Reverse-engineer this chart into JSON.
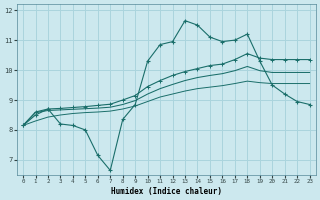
{
  "xlabel": "Humidex (Indice chaleur)",
  "bg_color": "#cce8ee",
  "grid_color": "#aad4dd",
  "line_color": "#1a6e6a",
  "xlim": [
    -0.5,
    23.5
  ],
  "ylim": [
    6.5,
    12.2
  ],
  "yticks": [
    7,
    8,
    9,
    10,
    11,
    12
  ],
  "xticks": [
    0,
    1,
    2,
    3,
    4,
    5,
    6,
    7,
    8,
    9,
    10,
    11,
    12,
    13,
    14,
    15,
    16,
    17,
    18,
    19,
    20,
    21,
    22,
    23
  ],
  "line1_x": [
    0,
    1,
    2,
    3,
    4,
    5,
    6,
    7,
    8,
    9,
    10,
    11,
    12,
    13,
    14,
    15,
    16,
    17,
    18,
    19,
    20,
    21,
    22,
    23
  ],
  "line1_y": [
    8.15,
    8.5,
    8.7,
    8.2,
    8.15,
    8.0,
    7.15,
    6.65,
    8.35,
    8.85,
    10.3,
    10.85,
    10.95,
    11.65,
    11.5,
    11.1,
    10.95,
    11.0,
    11.2,
    10.3,
    9.5,
    9.2,
    8.95,
    8.85
  ],
  "line2_x": [
    0,
    1,
    2,
    3,
    4,
    5,
    6,
    7,
    8,
    9,
    10,
    11,
    12,
    13,
    14,
    15,
    16,
    17,
    18,
    19,
    20,
    21,
    22,
    23
  ],
  "line2_y": [
    8.15,
    8.6,
    8.7,
    8.72,
    8.75,
    8.78,
    8.82,
    8.86,
    9.0,
    9.15,
    9.45,
    9.65,
    9.82,
    9.95,
    10.05,
    10.15,
    10.2,
    10.35,
    10.55,
    10.4,
    10.35,
    10.35,
    10.35,
    10.35
  ],
  "line3_x": [
    0,
    1,
    2,
    3,
    4,
    5,
    6,
    7,
    8,
    9,
    10,
    11,
    12,
    13,
    14,
    15,
    16,
    17,
    18,
    19,
    20,
    21,
    22,
    23
  ],
  "line3_y": [
    8.15,
    8.58,
    8.65,
    8.67,
    8.69,
    8.71,
    8.73,
    8.76,
    8.85,
    8.98,
    9.2,
    9.38,
    9.52,
    9.65,
    9.75,
    9.82,
    9.88,
    9.98,
    10.12,
    9.98,
    9.92,
    9.92,
    9.92,
    9.92
  ],
  "line4_x": [
    0,
    1,
    2,
    3,
    4,
    5,
    6,
    7,
    8,
    9,
    10,
    11,
    12,
    13,
    14,
    15,
    16,
    17,
    18,
    19,
    20,
    21,
    22,
    23
  ],
  "line4_y": [
    8.15,
    8.3,
    8.43,
    8.5,
    8.55,
    8.58,
    8.6,
    8.63,
    8.7,
    8.8,
    8.95,
    9.1,
    9.2,
    9.3,
    9.38,
    9.43,
    9.48,
    9.55,
    9.63,
    9.58,
    9.55,
    9.55,
    9.55,
    9.55
  ]
}
